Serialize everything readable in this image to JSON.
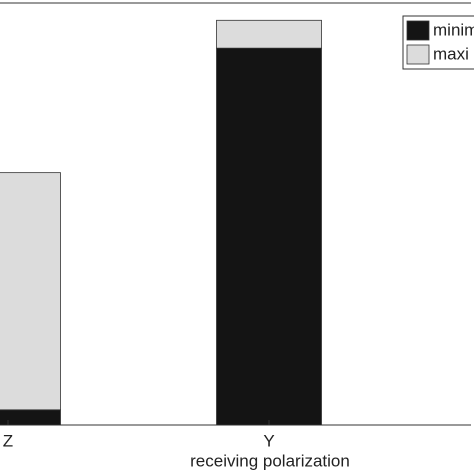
{
  "chart_data": {
    "type": "stacked_bar",
    "x_label": "receiving polarization",
    "categories": [
      "Z",
      "Y"
    ],
    "series": [
      {
        "name": "minim",
        "color": "#141414",
        "values": [
          3.6,
          89.3
        ]
      },
      {
        "name": "maxi",
        "color": "#dcdcdc",
        "values": [
          56.2,
          6.6
        ]
      }
    ],
    "ylim": [
      0,
      100
    ]
  }
}
